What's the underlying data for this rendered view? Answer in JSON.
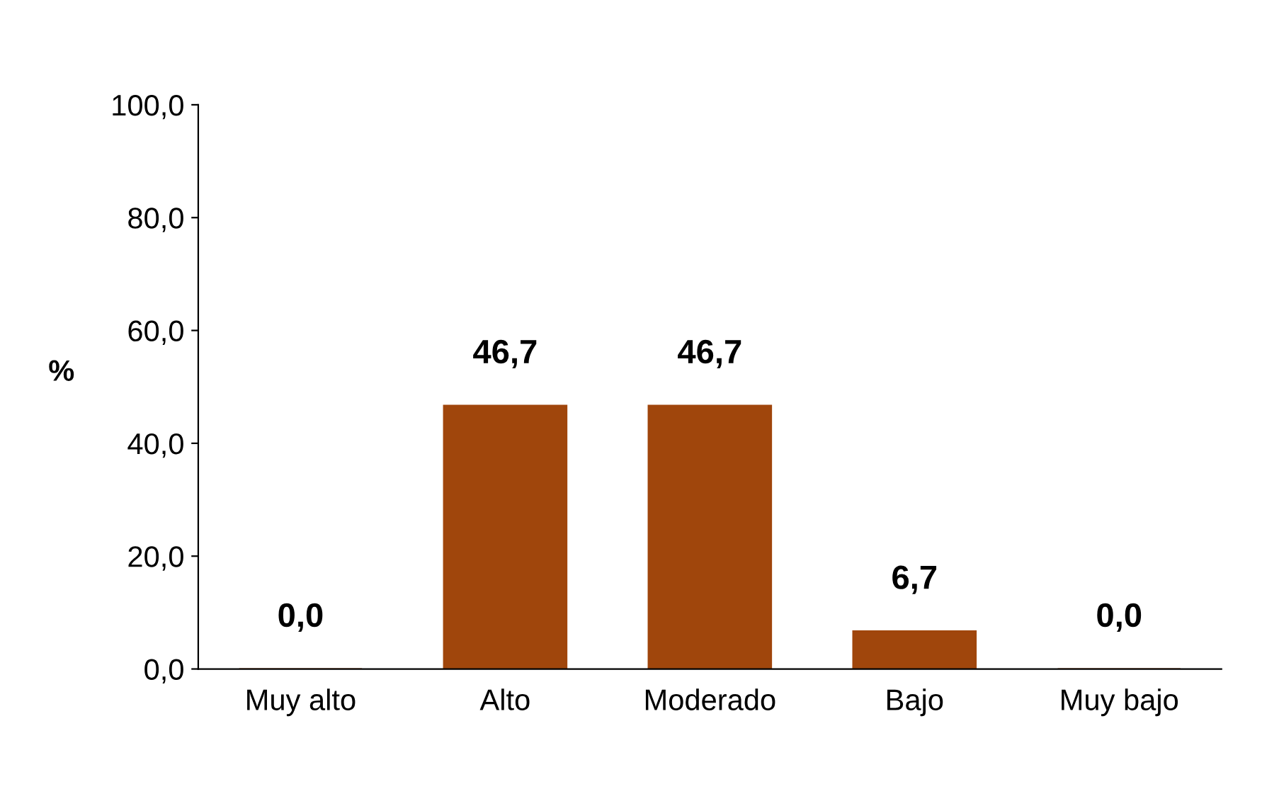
{
  "chart_data": {
    "type": "bar",
    "ylabel": "%",
    "categories": [
      "Muy alto",
      "Alto",
      "Moderado",
      "Bajo",
      "Muy bajo"
    ],
    "values": [
      0.0,
      46.7,
      46.7,
      6.7,
      0.0
    ],
    "value_labels": [
      "0,0",
      "46,7",
      "46,7",
      "6,7",
      "0,0"
    ],
    "color": "#a0460c",
    "ylim": [
      0,
      100
    ],
    "yticks": [
      {
        "value": 0,
        "label": "0,0"
      },
      {
        "value": 20,
        "label": "20,0"
      },
      {
        "value": 40,
        "label": "40,0"
      },
      {
        "value": 60,
        "label": "60,0"
      },
      {
        "value": 80,
        "label": "80,0"
      },
      {
        "value": 100,
        "label": "100,0"
      }
    ],
    "grid": false,
    "legend": false
  }
}
